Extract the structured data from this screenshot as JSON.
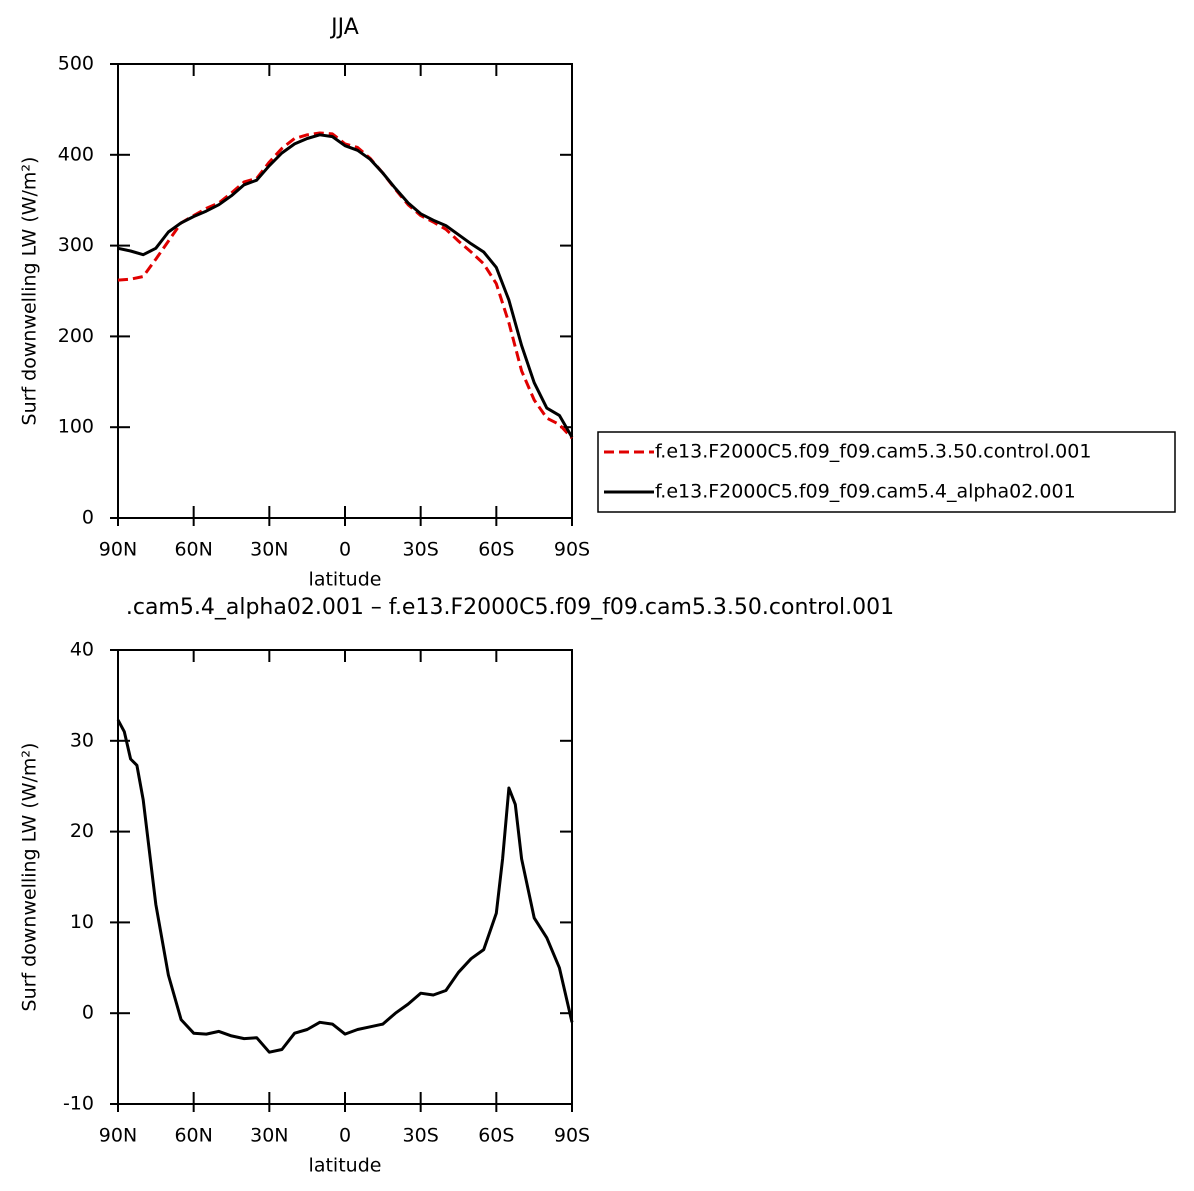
{
  "chart_data": [
    {
      "type": "line",
      "title": "JJA",
      "xlabel": "latitude",
      "ylabel": "Surf downwelling LW (W/m²)",
      "x": [
        90,
        85,
        80,
        75,
        70,
        65,
        60,
        55,
        50,
        45,
        40,
        35,
        30,
        25,
        20,
        15,
        10,
        5,
        0,
        -5,
        -10,
        -15,
        -20,
        -25,
        -30,
        -35,
        -40,
        -45,
        -50,
        -55,
        -60,
        -65,
        -70,
        -75,
        -80,
        -85,
        -90
      ],
      "series": [
        {
          "name": "f.e13.F2000C5.f09_f09.cam5.3.50.control.001",
          "color": "#e00000",
          "dash": true,
          "values": [
            262,
            263,
            266,
            285,
            305,
            325,
            333,
            341,
            347,
            358,
            370,
            374,
            392,
            407,
            418,
            422,
            424,
            423,
            412,
            408,
            396,
            380,
            362,
            345,
            333,
            326,
            318,
            305,
            293,
            280,
            258,
            215,
            162,
            130,
            110,
            103,
            88
          ]
        },
        {
          "name": "f.e13.F2000C5.f09_f09.cam5.4_alpha02.001",
          "color": "#000000",
          "dash": false,
          "values": [
            297,
            294,
            290,
            297,
            315,
            325,
            332,
            338,
            345,
            355,
            367,
            372,
            388,
            402,
            412,
            418,
            422,
            420,
            410,
            405,
            395,
            380,
            363,
            347,
            335,
            328,
            322,
            312,
            302,
            293,
            276,
            240,
            190,
            149,
            121,
            113,
            89
          ]
        }
      ],
      "xlim": [
        90,
        -90
      ],
      "xticks": [
        {
          "value": 90,
          "label": "90N"
        },
        {
          "value": 60,
          "label": "60N"
        },
        {
          "value": 30,
          "label": "30N"
        },
        0,
        {
          "value": -30,
          "label": "30S"
        },
        {
          "value": -60,
          "label": "60S"
        },
        {
          "value": -90,
          "label": "90S"
        }
      ],
      "ylim": [
        0,
        500
      ],
      "yticks": [
        0,
        100,
        200,
        300,
        400,
        500
      ],
      "legend": "right"
    },
    {
      "type": "line",
      "title": ".cam5.4_alpha02.001 – f.e13.F2000C5.f09_f09.cam5.3.50.control.001",
      "xlabel": "latitude",
      "ylabel": "Surf downwelling LW (W/m²)",
      "x": [
        90,
        87.5,
        85,
        82.5,
        80,
        75,
        70,
        65,
        60,
        55,
        50,
        45,
        40,
        35,
        30,
        25,
        20,
        15,
        10,
        5,
        0,
        -5,
        -10,
        -15,
        -20,
        -25,
        -30,
        -35,
        -40,
        -45,
        -50,
        -55,
        -60,
        -62.5,
        -65,
        -67.5,
        -70,
        -75,
        -80,
        -85,
        -90
      ],
      "series": [
        {
          "color": "#000000",
          "dash": false,
          "values": [
            32.3,
            31,
            28,
            27.3,
            23.5,
            12,
            4.2,
            -0.7,
            -2.2,
            -2.3,
            -2,
            -2.5,
            -2.8,
            -2.7,
            -4.3,
            -4,
            -2.2,
            -1.8,
            -1,
            -1.2,
            -2.3,
            -1.8,
            -1.5,
            -1.2,
            0,
            1,
            2.2,
            2,
            2.5,
            4.5,
            6,
            7,
            11,
            17,
            24.8,
            23,
            17,
            10.5,
            8.3,
            5,
            -1
          ]
        }
      ],
      "xlim": [
        90,
        -90
      ],
      "xticks": [
        {
          "value": 90,
          "label": "90N"
        },
        {
          "value": 60,
          "label": "60N"
        },
        {
          "value": 30,
          "label": "30N"
        },
        0,
        {
          "value": -30,
          "label": "30S"
        },
        {
          "value": -60,
          "label": "60S"
        },
        {
          "value": -90,
          "label": "90S"
        }
      ],
      "ylim": [
        -10,
        40
      ],
      "yticks": [
        -10,
        0,
        10,
        20,
        30,
        40
      ]
    }
  ]
}
